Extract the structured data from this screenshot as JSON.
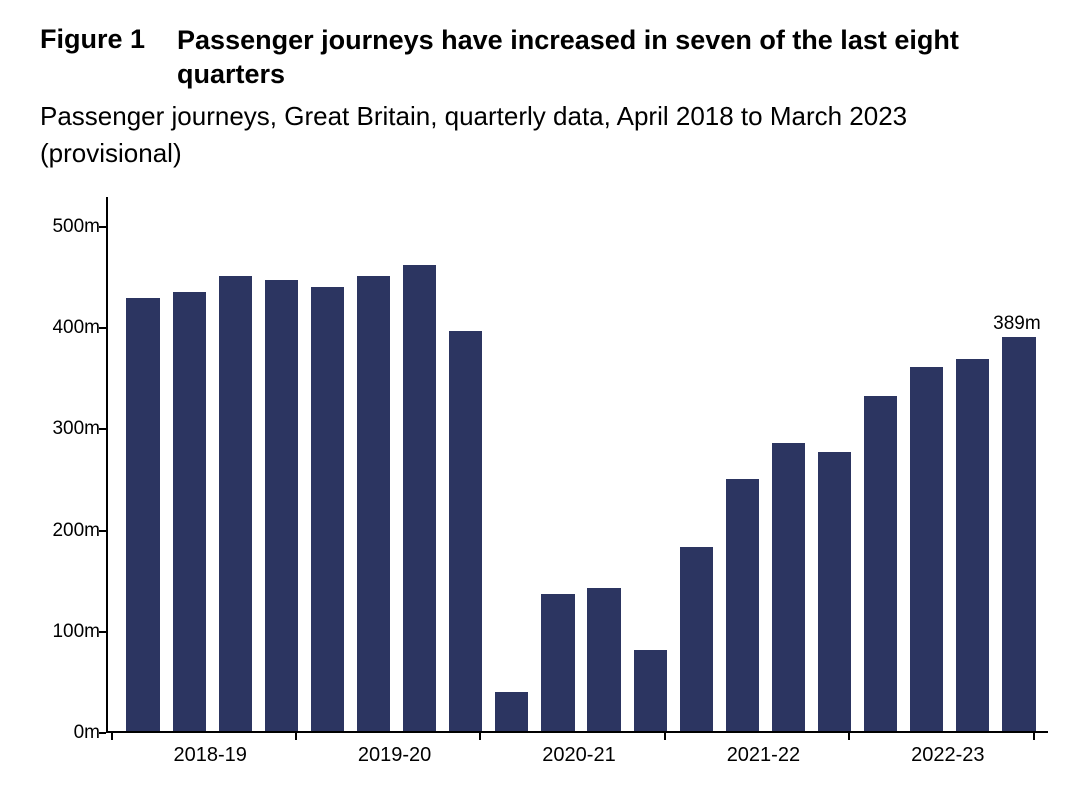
{
  "figure_label": "Figure 1",
  "title": "Passenger journeys have increased in seven of the last eight quarters",
  "subtitle": "Passenger journeys, Great Britain, quarterly data, April 2018 to March 2023 (provisional)",
  "chart": {
    "type": "bar",
    "background_color": "#ffffff",
    "axis_color": "#000000",
    "bar_color": "#2c3561",
    "bar_rel_width": 0.72,
    "y_axis": {
      "min": 0,
      "max": 530,
      "ticks": [
        0,
        100,
        200,
        300,
        400,
        500
      ],
      "tick_labels": [
        "0m",
        "100m",
        "200m",
        "300m",
        "400m",
        "500m"
      ],
      "label_fontsize": 19
    },
    "x_groups": [
      {
        "label": "2018-19",
        "bars": 4
      },
      {
        "label": "2019-20",
        "bars": 4
      },
      {
        "label": "2020-21",
        "bars": 4
      },
      {
        "label": "2021-22",
        "bars": 4
      },
      {
        "label": "2022-23",
        "bars": 4
      }
    ],
    "x_label_fontsize": 20,
    "values": [
      428,
      434,
      450,
      446,
      439,
      450,
      461,
      395,
      38,
      135,
      141,
      80,
      182,
      249,
      285,
      276,
      331,
      360,
      368,
      389
    ],
    "data_labels": [
      {
        "index": 19,
        "text": "389m"
      }
    ]
  }
}
